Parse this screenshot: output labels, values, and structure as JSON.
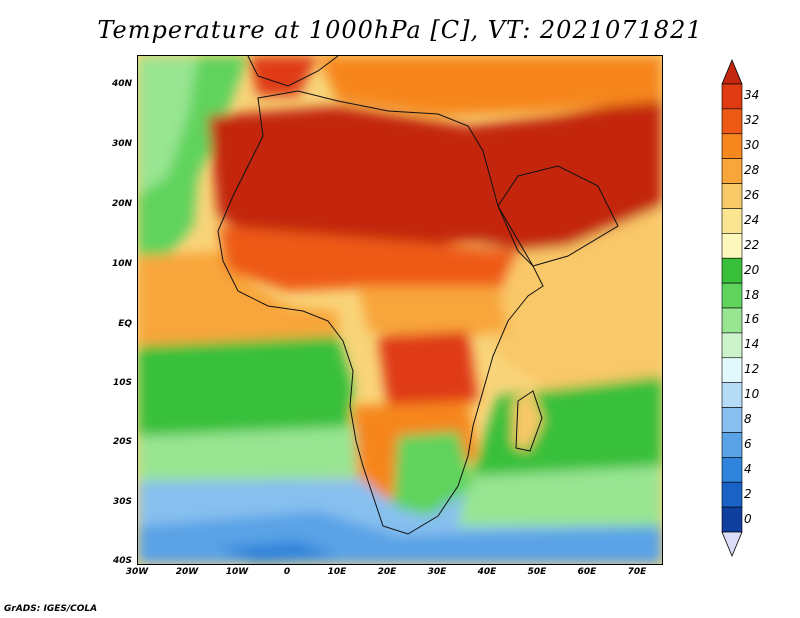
{
  "title": "Temperature at 1000hPa [C], VT: 2021071821",
  "footer": "GrADS: IGES/COLA",
  "map": {
    "lon_range": [
      -30,
      75
    ],
    "lat_range": [
      -40,
      45
    ],
    "x_ticks": [
      "30W",
      "20W",
      "10W",
      "0",
      "10E",
      "20E",
      "30E",
      "40E",
      "50E",
      "60E",
      "70E"
    ],
    "y_ticks": [
      "40N",
      "30N",
      "20N",
      "10N",
      "EQ",
      "10S",
      "20S",
      "30S",
      "40S"
    ]
  },
  "colorbar": {
    "labels": [
      "34",
      "32",
      "30",
      "28",
      "26",
      "24",
      "22",
      "20",
      "18",
      "16",
      "14",
      "12",
      "10",
      "8",
      "6",
      "4",
      "2",
      "0"
    ],
    "colors": [
      "#c3270f",
      "#df3a12",
      "#ee5a16",
      "#f6861e",
      "#f8a53a",
      "#f9c867",
      "#fbe592",
      "#fcf7bc",
      "#38c03a",
      "#5fd35c",
      "#98e592",
      "#cdf3cc",
      "#e3f8fc",
      "#b5dbf6",
      "#87c0ef",
      "#5aa3e6",
      "#2f83da",
      "#1b62c7",
      "#0f3f9e",
      "#0a2070"
    ],
    "over_color": "#c3270f",
    "under_color": "#dcdcf8"
  }
}
